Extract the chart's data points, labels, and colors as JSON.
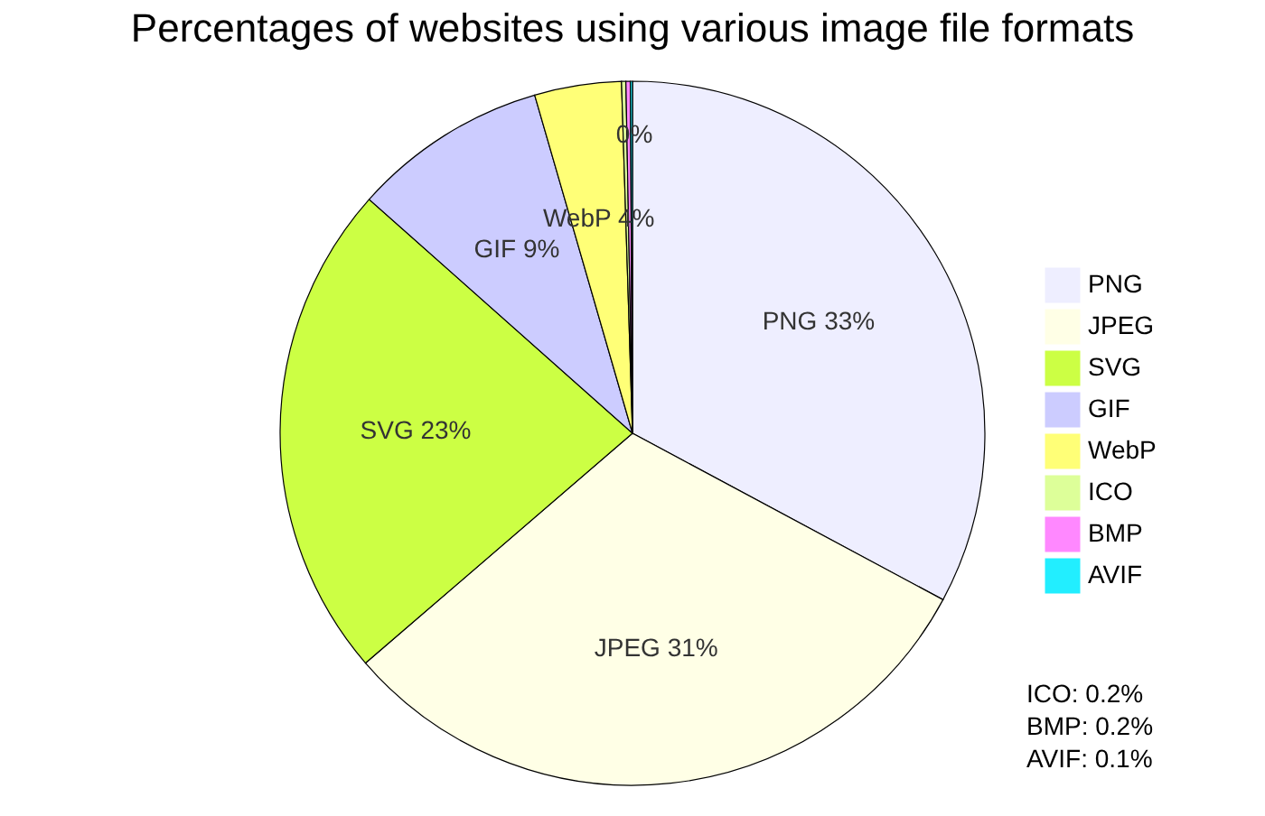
{
  "chart_data": {
    "type": "pie",
    "title": "Percentages of websites using various image file formats",
    "categories": [
      "PNG",
      "JPEG",
      "SVG",
      "GIF",
      "WebP",
      "ICO",
      "BMP",
      "AVIF"
    ],
    "values": [
      33,
      31,
      23,
      9,
      4,
      0.2,
      0.2,
      0.1
    ],
    "colors": [
      "#eeeeff",
      "#ffffe6",
      "#ccff44",
      "#ccccff",
      "#ffff77",
      "#ddff99",
      "#ff88ff",
      "#22eeff"
    ],
    "value_labels": [
      "33%",
      "31%",
      "23%",
      "9%",
      "4%",
      "0%",
      null,
      null
    ],
    "legend": "right",
    "annotations": [
      "ICO: 0.2%",
      "BMP: 0.2%",
      "AVIF: 0.1%"
    ]
  }
}
